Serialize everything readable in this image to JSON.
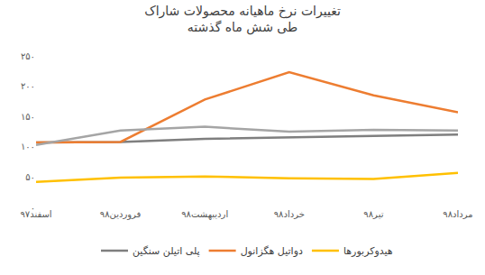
{
  "chart_data": {
    "type": "line",
    "title": "تغییرات نرخ ماهیانه محصولات شاراک",
    "subtitle": "طی شش ماه گذشته",
    "categories": [
      "اسفند۹۷",
      "فروردین۹۸",
      "اردیبهشت۹۸",
      "خرداد۹۸",
      "تیر۹۸",
      "مرداد۹۸"
    ],
    "series": [
      {
        "name": "پلی اتیلن سنگین",
        "color": "#7f7f7f",
        "values": [
          107,
          108,
          113,
          116,
          118,
          120
        ]
      },
      {
        "name": "دواتیل هگزانول",
        "color": "#ed7d31",
        "values": [
          107,
          108,
          178,
          223,
          185,
          157
        ]
      },
      {
        "name": "هیدوکربورها",
        "color": "#ffc000",
        "values": [
          42,
          49,
          51,
          48,
          47,
          57
        ]
      },
      {
        "color": "#a5a5a5",
        "values": [
          103,
          127,
          133,
          125,
          128,
          127
        ]
      }
    ],
    "ylim": [
      0,
      250
    ],
    "yticks": [
      {
        "value": 0,
        "label": "۰"
      },
      {
        "value": 50,
        "label": "۵۰"
      },
      {
        "value": 100,
        "label": "۱۰۰"
      },
      {
        "value": 150,
        "label": "۱۵۰"
      },
      {
        "value": 200,
        "label": "۲۰۰"
      },
      {
        "value": 250,
        "label": "۲۵۰"
      }
    ],
    "grid": false,
    "legend": "bottom"
  }
}
